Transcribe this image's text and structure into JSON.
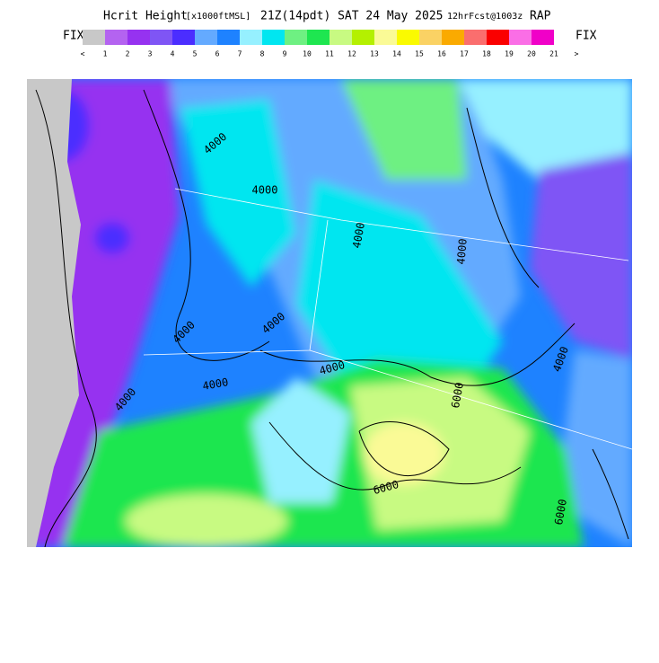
{
  "header": {
    "title": "Hcrit Height",
    "units": "[x1000ftMSL]",
    "time": "21Z(14pdt) SAT 24 May 2025",
    "forecast": "12hrFcst@1003z",
    "model": "RAP"
  },
  "legend": {
    "left": "FIX",
    "right": "FIX",
    "colors": [
      "#c8c8c8",
      "#b463f0",
      "#9632f0",
      "#7f55f5",
      "#4b2dff",
      "#64aaff",
      "#1e82ff",
      "#96f0ff",
      "#00e6f0",
      "#6ef082",
      "#1ee650",
      "#c8fa82",
      "#b4f000",
      "#fafa96",
      "#fafa00",
      "#fad264",
      "#faaa00",
      "#fa6e6e",
      "#fa0000",
      "#fa6ee6",
      "#f000c8"
    ],
    "labels": [
      "<",
      "1",
      "2",
      "3",
      "4",
      "5",
      "6",
      "7",
      "8",
      "9",
      "10",
      "11",
      "12",
      "13",
      "14",
      "15",
      "16",
      "17",
      "18",
      "19",
      "20",
      "21",
      ">"
    ]
  },
  "map": {
    "contour_labels": [
      "4000",
      "4000",
      "4000",
      "4000",
      "4000",
      "4000",
      "4000",
      "4000",
      "4000",
      "4000",
      "6000",
      "6000",
      "6000"
    ]
  }
}
